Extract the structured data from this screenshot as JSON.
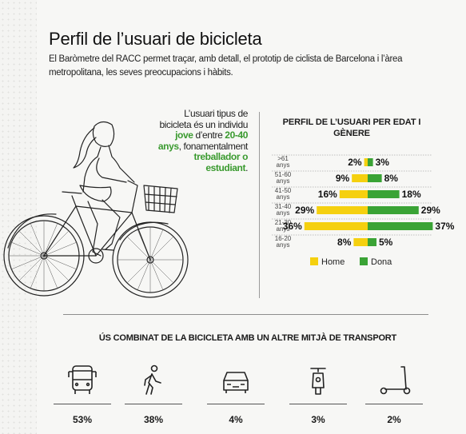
{
  "header": {
    "title": "Perfil de l’usuari de bicicleta",
    "subtitle": "El Baròmetre del RACC permet traçar, amb detall, el prototip de ciclista de Barcelona i l’àrea metropolitana, les seves preocupacions i hàbits."
  },
  "intro": {
    "t1": "L’usuari tipus de bicicleta és un individu ",
    "h1": "jove",
    "t2": " d’entre ",
    "h2": "20-40 anys",
    "t3": ", fonamentalment ",
    "h3": "treballador o estudiant",
    "t4": "."
  },
  "colors": {
    "home": "#f5d00f",
    "dona": "#3aa335",
    "accent": "#3a9a2f"
  },
  "chart_data": {
    "type": "bar",
    "title": "PERFIL DE L’USUARI PER EDAT I GÈNERE",
    "categories": [
      ">61 anys",
      "51-60 anys",
      "41-50 anys",
      "31-40 anys",
      "21-30 anys",
      "16-20 anys"
    ],
    "series": [
      {
        "name": "Home",
        "values": [
          2,
          9,
          16,
          29,
          36,
          8
        ]
      },
      {
        "name": "Dona",
        "values": [
          3,
          8,
          18,
          29,
          37,
          5
        ]
      }
    ],
    "unit": "%",
    "legend": "bottom"
  },
  "usage": {
    "title": "ÚS COMBINAT DE LA BICICLETA AMB UN ALTRE MITJÀ DE TRANSPORT",
    "items": [
      {
        "icon": "bus-icon",
        "value": "53%"
      },
      {
        "icon": "pedestrian-icon",
        "value": "38%"
      },
      {
        "icon": "car-icon",
        "value": "4%"
      },
      {
        "icon": "motorbike-icon",
        "value": "3%"
      },
      {
        "icon": "scooter-icon",
        "value": "2%"
      }
    ]
  }
}
